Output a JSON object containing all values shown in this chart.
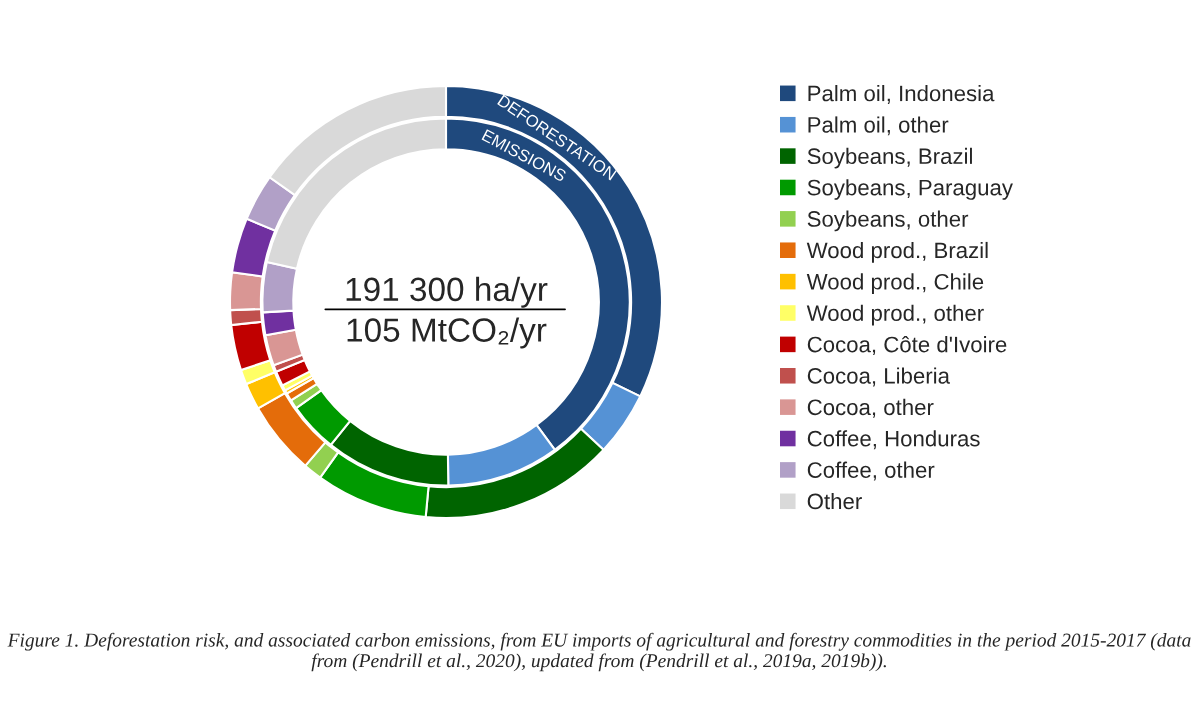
{
  "chart_data": {
    "type": "donut",
    "categories": [
      "Palm oil, Indonesia",
      "Palm oil, other",
      "Soybeans, Brazil",
      "Soybeans, Paraguay",
      "Soybeans, other",
      "Wood prod., Brazil",
      "Wood prod., Chile",
      "Wood prod., other",
      "Cocoa, Côte d'Ivoire",
      "Cocoa, Liberia",
      "Cocoa, other",
      "Coffee, Honduras",
      "Coffee, other",
      "Other"
    ],
    "colors": [
      "#1f497d",
      "#5592d5",
      "#006400",
      "#009a00",
      "#92d050",
      "#e46c0a",
      "#ffc000",
      "#ffff66",
      "#c00000",
      "#c0504d",
      "#d99694",
      "#7030a0",
      "#b1a0c7",
      "#d9d9d9"
    ],
    "series": [
      {
        "name": "DEFORESTATION",
        "values": [
          32.2,
          4.8,
          14.5,
          8.4,
          1.4,
          5.5,
          2.0,
          1.1,
          3.4,
          1.1,
          2.8,
          4.1,
          3.5,
          15.2
        ]
      },
      {
        "name": "EMISSIONS",
        "values": [
          39.9,
          9.9,
          11.0,
          4.4,
          0.8,
          0.7,
          0.3,
          0.5,
          1.3,
          0.6,
          2.7,
          2.0,
          4.4,
          21.5
        ]
      }
    ],
    "legend": "right",
    "annotations": [
      "191 300 ha/yr",
      "105 MtCO₂/yr",
      "Figure 1. Deforestation risk, and associated carbon emissions, from EU imports of agricultural and forestry commodities in the period 2015-2017 (data from (Pendrill et al., 2020), updated from (Pendrill et al., 2019a, 2019b))."
    ]
  }
}
